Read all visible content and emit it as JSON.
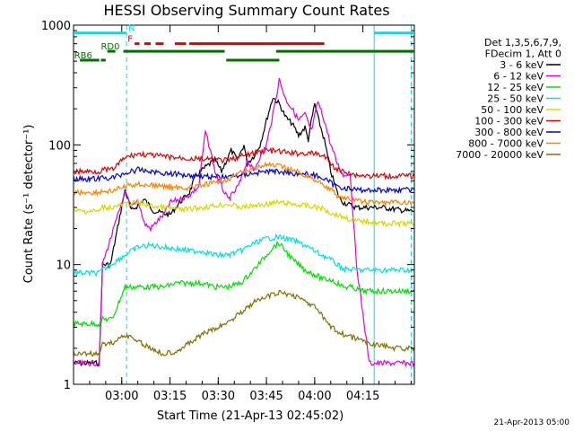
{
  "chart_data": {
    "type": "line",
    "title": "HESSI Observing Summary Count Rates",
    "xlabel": "Start Time (21-Apr-13 02:45:02)",
    "ylabel": "Count Rate (s⁻¹ detector⁻¹)",
    "ylim": [
      1,
      1000
    ],
    "yscale": "log",
    "xlim_minutes": [
      -8,
      98
    ],
    "x_ticks": [
      {
        "label": "03:00",
        "x": 7
      },
      {
        "label": "03:15",
        "x": 22
      },
      {
        "label": "03:30",
        "x": 37
      },
      {
        "label": "03:45",
        "x": 52
      },
      {
        "label": "04:00",
        "x": 67
      },
      {
        "label": "04:15",
        "x": 82
      }
    ],
    "y_ticks": [
      {
        "label": "1",
        "y": 1
      },
      {
        "label": "10",
        "y": 10
      },
      {
        "label": "100",
        "y": 100
      },
      {
        "label": "1000",
        "y": 1000
      }
    ],
    "legend": {
      "header": [
        "Det 1,3,5,6,7,9,",
        "FDecim 1, Att 0"
      ],
      "position": "right"
    },
    "flags": [
      {
        "label": "N",
        "color": "#00e0e0",
        "segments": [
          [
            -8,
            8.5
          ],
          [
            85.5,
            98
          ]
        ],
        "y": 860,
        "label_x": 9
      },
      {
        "label": "F",
        "color": "#e00000",
        "segments": [
          [
            11,
            12.5
          ],
          [
            14,
            16
          ],
          [
            17.5,
            20
          ],
          [
            23.5,
            27
          ],
          [
            28,
            70
          ]
        ],
        "y": 700,
        "label_x": 8.8
      },
      {
        "label": "RD0",
        "color": "#007000",
        "segments": [
          [
            2.5,
            5
          ],
          [
            7.5,
            39
          ],
          [
            55,
            98
          ]
        ],
        "y": 605,
        "label_x": 0.5
      },
      {
        "label": "RB6",
        "color": "#007000",
        "segments": [
          [
            -6,
            0
          ],
          [
            0.5,
            2
          ],
          [
            39.5,
            56
          ]
        ],
        "y": 510,
        "label_x": -7.8
      }
    ],
    "series": [
      {
        "name": "3 - 6 keV",
        "color": "#000000",
        "x": [
          -8,
          0,
          1,
          3.5,
          8,
          10,
          14,
          17,
          22,
          25,
          28,
          30,
          33,
          36,
          38,
          41,
          43,
          45,
          46,
          48,
          50,
          52,
          54,
          56,
          58,
          60,
          62,
          64,
          65,
          66,
          67,
          68,
          70,
          72,
          74,
          75,
          76,
          80,
          84,
          88,
          92,
          96,
          98
        ],
        "y": [
          1.5,
          1.5,
          10,
          10,
          42,
          28,
          35,
          28,
          26,
          33,
          40,
          55,
          65,
          75,
          60,
          90,
          75,
          100,
          70,
          80,
          100,
          160,
          250,
          220,
          170,
          150,
          120,
          140,
          110,
          160,
          220,
          170,
          110,
          60,
          40,
          35,
          33,
          30,
          30,
          30,
          29,
          28,
          28
        ]
      },
      {
        "name": "6 - 12 keV",
        "color": "#e000e0",
        "x": [
          -8,
          0,
          1,
          8,
          10,
          12,
          14,
          16,
          18,
          20,
          22,
          26,
          28,
          31,
          33,
          35,
          36,
          38,
          40,
          42,
          44,
          46,
          48,
          50,
          52,
          54,
          56,
          58,
          60,
          62,
          64,
          66,
          68,
          70,
          72,
          74,
          76,
          78,
          80,
          84,
          90,
          98
        ],
        "y": [
          1.5,
          1.5,
          10,
          40,
          30,
          35,
          22,
          20,
          23,
          26,
          33,
          36,
          38,
          45,
          130,
          80,
          60,
          45,
          35,
          40,
          50,
          75,
          60,
          80,
          100,
          180,
          350,
          240,
          200,
          160,
          180,
          130,
          230,
          160,
          100,
          70,
          55,
          60,
          10,
          1.5,
          1.5,
          1.5
        ]
      },
      {
        "name": "12 - 25 keV",
        "color": "#00e000",
        "x": [
          -8,
          0,
          1,
          4,
          8,
          12,
          16,
          20,
          24,
          28,
          32,
          36,
          40,
          44,
          48,
          52,
          54,
          56,
          58,
          60,
          62,
          64,
          66,
          68,
          70,
          72,
          74,
          76,
          78,
          82,
          88,
          94,
          98
        ],
        "y": [
          3.2,
          3.2,
          3.5,
          3.5,
          6.5,
          6.5,
          6.5,
          6.5,
          7,
          7,
          7,
          6.5,
          6.5,
          7,
          9,
          12,
          14,
          15,
          13,
          11,
          10,
          9,
          8.5,
          8,
          7.5,
          7.5,
          7,
          6.5,
          6.5,
          6,
          6,
          6,
          6
        ]
      },
      {
        "name": "25 - 50 keV",
        "color": "#00e0e0",
        "x": [
          -8,
          0,
          1,
          8,
          12,
          16,
          20,
          24,
          28,
          32,
          36,
          40,
          44,
          48,
          52,
          56,
          60,
          64,
          68,
          72,
          74,
          76,
          80,
          84,
          88,
          92,
          98
        ],
        "y": [
          8.5,
          8.5,
          9,
          12,
          14,
          14.5,
          14,
          13.5,
          13,
          13,
          12,
          12,
          13,
          15,
          16.5,
          17,
          16,
          14.5,
          12.5,
          11,
          10,
          9.2,
          9,
          9,
          9,
          9,
          9
        ]
      },
      {
        "name": "50 - 100 keV",
        "color": "#d8d800",
        "x": [
          -8,
          0,
          1,
          4,
          8,
          12,
          16,
          20,
          24,
          28,
          32,
          36,
          40,
          44,
          48,
          52,
          56,
          60,
          64,
          68,
          70,
          72,
          74,
          76,
          80,
          84,
          88,
          92,
          98
        ],
        "y": [
          28,
          28,
          30,
          30,
          32,
          33,
          31,
          30,
          29,
          29,
          30,
          31,
          32,
          30,
          31,
          32,
          33,
          32,
          31,
          30,
          29,
          27,
          26,
          25,
          23,
          23,
          22,
          22,
          22
        ]
      },
      {
        "name": "100 - 300 keV",
        "color": "#e00000",
        "x": [
          -8,
          0,
          1,
          4,
          8,
          12,
          16,
          20,
          24,
          28,
          32,
          36,
          40,
          44,
          48,
          52,
          56,
          60,
          64,
          68,
          70,
          72,
          74,
          76,
          80,
          84,
          88,
          92,
          98
        ],
        "y": [
          60,
          60,
          62,
          62,
          78,
          84,
          82,
          80,
          78,
          77,
          76,
          75,
          74,
          80,
          85,
          90,
          88,
          85,
          85,
          84,
          80,
          70,
          62,
          60,
          56,
          55,
          55,
          55,
          55
        ]
      },
      {
        "name": "300 - 800 keV",
        "color": "#0000e0",
        "x": [
          -8,
          0,
          1,
          4,
          8,
          12,
          16,
          20,
          24,
          28,
          32,
          36,
          40,
          44,
          48,
          52,
          56,
          60,
          64,
          68,
          70,
          72,
          74,
          76,
          80,
          84,
          88,
          92,
          98
        ],
        "y": [
          52,
          52,
          53,
          53,
          58,
          62,
          60,
          58,
          57,
          56,
          55,
          54,
          54,
          56,
          58,
          60,
          60,
          58,
          57,
          55,
          52,
          48,
          45,
          44,
          42,
          42,
          42,
          42,
          42
        ]
      },
      {
        "name": "800 - 7000 keV",
        "color": "#ff8000",
        "x": [
          -8,
          0,
          1,
          4,
          8,
          12,
          16,
          20,
          24,
          28,
          32,
          36,
          40,
          44,
          48,
          52,
          56,
          60,
          64,
          68,
          70,
          72,
          74,
          76,
          80,
          84,
          88,
          92,
          98
        ],
        "y": [
          40,
          40,
          41,
          41,
          45,
          47,
          46,
          45,
          44,
          44,
          46,
          48,
          52,
          58,
          64,
          68,
          66,
          62,
          56,
          50,
          46,
          42,
          38,
          36,
          34,
          33,
          33,
          33,
          33
        ]
      },
      {
        "name": "7000 - 20000 keV",
        "color": "#807000",
        "x": [
          -8,
          0,
          1,
          4,
          8,
          12,
          16,
          20,
          24,
          28,
          32,
          36,
          40,
          44,
          48,
          52,
          56,
          60,
          64,
          68,
          70,
          72,
          74,
          76,
          80,
          84,
          88,
          92,
          98
        ],
        "y": [
          1.8,
          1.8,
          2.2,
          2.2,
          2.6,
          2.3,
          2.0,
          1.8,
          1.9,
          2.2,
          2.6,
          2.9,
          3.3,
          4.0,
          4.8,
          5.4,
          5.8,
          5.6,
          5.0,
          4.2,
          3.5,
          3.0,
          2.8,
          2.6,
          2.4,
          2.2,
          2.1,
          2.0,
          2.0
        ]
      }
    ],
    "vlines": [
      {
        "x": 8.5,
        "color": "#00e0e0",
        "dashed": true
      },
      {
        "x": 85.5,
        "color": "#00e0e0",
        "dashed": false
      },
      {
        "x": 97,
        "color": "#00e0e0",
        "dashed": true
      }
    ],
    "footer": "21-Apr-2013 05:00"
  }
}
